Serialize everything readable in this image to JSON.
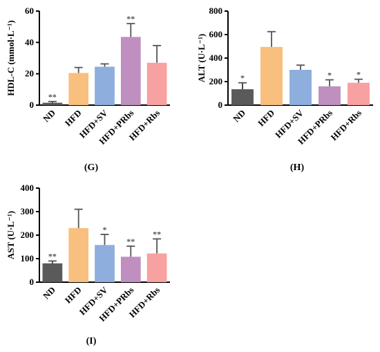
{
  "chart_data": [
    {
      "type": "bar",
      "panel_label": "(G)",
      "ylabel": "HDL-C (mmol·L⁻¹)",
      "ylim": [
        0,
        60
      ],
      "yticks": [
        0,
        20,
        40,
        60
      ],
      "categories": [
        "ND",
        "HFD",
        "HFD+SV",
        "HFD+PRbs",
        "HFD+Rbs"
      ],
      "values": [
        1.5,
        20.5,
        24.5,
        43.5,
        27
      ],
      "errors": [
        0.8,
        3.5,
        1.8,
        8.5,
        11
      ],
      "significance": [
        "**",
        "",
        "",
        "**",
        ""
      ],
      "colors": [
        "#5a5a5a",
        "#f9bf7e",
        "#8eaedd",
        "#bf8fbf",
        "#f7a1a1"
      ]
    },
    {
      "type": "bar",
      "panel_label": "(H)",
      "ylabel": "ALT (U·L⁻¹)",
      "ylim": [
        0,
        800
      ],
      "yticks": [
        0,
        200,
        400,
        600,
        800
      ],
      "categories": [
        "ND",
        "HFD",
        "HFD+SV",
        "HFD+PRbs",
        "HFD+Rbs"
      ],
      "values": [
        135,
        495,
        300,
        160,
        190
      ],
      "errors": [
        55,
        130,
        40,
        55,
        30
      ],
      "significance": [
        "*",
        "",
        "",
        "*",
        "*"
      ],
      "colors": [
        "#5a5a5a",
        "#f9bf7e",
        "#8eaedd",
        "#bf8fbf",
        "#f7a1a1"
      ]
    },
    {
      "type": "bar",
      "panel_label": "(I)",
      "ylabel": "AST (U·L⁻¹)",
      "ylim": [
        0,
        400
      ],
      "yticks": [
        0,
        100,
        200,
        300,
        400
      ],
      "categories": [
        "ND",
        "HFD",
        "HFD+SV",
        "HFD+PRbs",
        "HFD+Rbs"
      ],
      "values": [
        80,
        230,
        158,
        108,
        122
      ],
      "errors": [
        10,
        80,
        45,
        45,
        62
      ],
      "significance": [
        "**",
        "",
        "*",
        "**",
        "**"
      ],
      "colors": [
        "#5a5a5a",
        "#f9bf7e",
        "#8eaedd",
        "#bf8fbf",
        "#f7a1a1"
      ]
    }
  ]
}
